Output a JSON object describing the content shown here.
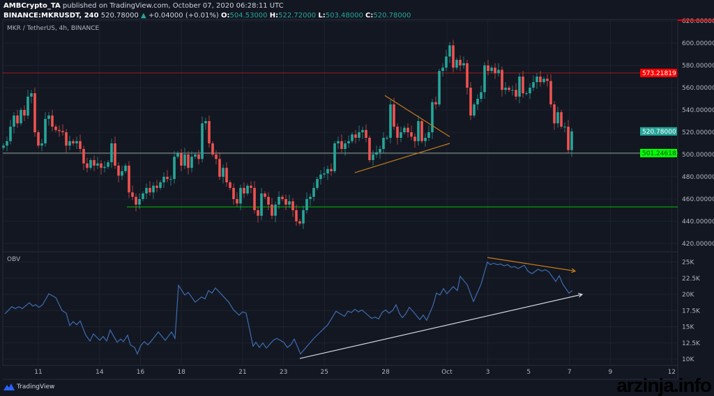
{
  "header": {
    "publisher": "AMBCrypto_TA",
    "published_text": "published on TradingView.com, October 07, 2020 06:28:11 UTC",
    "symbol": "BINANCE:MKRUSDT, 240",
    "last": "520.78000",
    "change": "+0.04000 (+0.01%)",
    "o_label": "O:",
    "o": "504.53000",
    "h_label": "H:",
    "h": "522.72000",
    "l_label": "L:",
    "l": "503.48000",
    "c_label": "C:",
    "c": "520.78000"
  },
  "pane_title": "MKR / TetherUS, 4h, BINANCE",
  "obv_title": "OBV",
  "footer": {
    "brand": "TradingView",
    "watermark": "arzinja.info"
  },
  "colors": {
    "background": "#131722",
    "up": "#26a69a",
    "down": "#ef5350",
    "obv": "#3d6eb0",
    "resistance": "#ff0000",
    "support": "#00ff00",
    "trendline": "#c77d1a"
  },
  "chart_data": [
    {
      "type": "candlestick",
      "title": "MKR / TetherUS, 4h, BINANCE",
      "interval": "4h",
      "ylim": [
        410,
        622
      ],
      "yticks": [
        420,
        440,
        460,
        480,
        500,
        520,
        540,
        560,
        580,
        600,
        620
      ],
      "ytick_labels": [
        "420.00000",
        "440.00000",
        "460.00000",
        "480.00000",
        "500.00000",
        "520.00000",
        "540.00000",
        "560.00000",
        "580.00000",
        "600.00000",
        "620.00000"
      ],
      "first_open": 506,
      "closes": [
        508,
        512,
        525,
        535,
        528,
        540,
        535,
        552,
        555,
        520,
        508,
        510,
        532,
        535,
        525,
        522,
        521,
        520,
        508,
        512,
        510,
        512,
        505,
        492,
        488,
        495,
        490,
        492,
        488,
        489,
        493,
        510,
        490,
        481,
        485,
        490,
        466,
        462,
        455,
        460,
        465,
        470,
        466,
        472,
        470,
        475,
        480,
        478,
        478,
        498,
        501,
        490,
        500,
        488,
        498,
        500,
        496,
        528,
        530,
        510,
        500,
        496,
        480,
        488,
        475,
        470,
        460,
        456,
        470,
        465,
        472,
        470,
        450,
        445,
        465,
        462,
        455,
        445,
        455,
        462,
        460,
        455,
        458,
        450,
        440,
        438,
        450,
        460,
        462,
        470,
        478,
        482,
        483,
        487,
        485,
        510,
        512,
        505,
        510,
        512,
        518,
        515,
        520,
        522,
        515,
        495,
        500,
        502,
        505,
        515,
        515,
        545,
        525,
        515,
        520,
        524,
        520,
        516,
        512,
        530,
        512,
        515,
        520,
        547,
        545,
        575,
        578,
        588,
        598,
        578,
        585,
        580,
        582,
        560,
        535,
        545,
        550,
        556,
        580,
        575,
        578,
        573,
        576,
        558,
        560,
        558,
        558,
        552,
        570,
        555,
        555,
        560,
        565,
        570,
        565,
        568,
        566,
        545,
        528,
        538,
        525,
        525,
        504,
        520.78
      ],
      "price_lines": [
        {
          "value": 573.21819,
          "label": "573.21819",
          "color": "#ff0000"
        },
        {
          "value": 520.78,
          "label": "520.78000",
          "color": "#26a69a"
        },
        {
          "value": 501.24618,
          "label": "501.24618",
          "color": "#00ff00"
        }
      ],
      "support_line": {
        "value": 453,
        "from_bar": 35.4,
        "color": "#00c000"
      },
      "trendlines": [
        {
          "from": [
            100.8,
            483.7
          ],
          "to": [
            128,
            510
          ],
          "color": "#c77d1a"
        },
        {
          "from": [
            109.4,
            553
          ],
          "to": [
            128,
            516
          ],
          "color": "#c77d1a"
        }
      ]
    },
    {
      "type": "line",
      "title": "OBV",
      "ylim": [
        9.2,
        26.5
      ],
      "yticks": [
        10,
        12.5,
        15,
        17.5,
        20,
        22.5,
        25
      ],
      "ytick_labels": [
        "10K",
        "12.5K",
        "15K",
        "17.5K",
        "20K",
        "22.5K",
        "25K"
      ],
      "points": [
        [
          0.4,
          17.0
        ],
        [
          2.4,
          18.1
        ],
        [
          3.4,
          17.8
        ],
        [
          4.4,
          18.1
        ],
        [
          5.4,
          17.8
        ],
        [
          7.4,
          18.7
        ],
        [
          8.4,
          18.2
        ],
        [
          9.2,
          18.4
        ],
        [
          10.2,
          18.0
        ],
        [
          11.2,
          18.4
        ],
        [
          13,
          20.1
        ],
        [
          15,
          19.5
        ],
        [
          16.8,
          17.5
        ],
        [
          18,
          17.1
        ],
        [
          19,
          15.2
        ],
        [
          20,
          15.8
        ],
        [
          21,
          15.3
        ],
        [
          22,
          15.9
        ],
        [
          23.6,
          13.7
        ],
        [
          24.8,
          12.8
        ],
        [
          25.8,
          13.9
        ],
        [
          27.6,
          12.9
        ],
        [
          28.6,
          13.5
        ],
        [
          29.6,
          12.8
        ],
        [
          30.6,
          14.5
        ],
        [
          32.6,
          12.6
        ],
        [
          33.6,
          13.1
        ],
        [
          34.4,
          12.7
        ],
        [
          35.6,
          13.7
        ],
        [
          36.4,
          12.2
        ],
        [
          37.6,
          11.8
        ],
        [
          38.4,
          10.8
        ],
        [
          39.4,
          12.1
        ],
        [
          40.4,
          12.7
        ],
        [
          41.4,
          12.2
        ],
        [
          42.4,
          12.8
        ],
        [
          44.4,
          14.2
        ],
        [
          46.4,
          12.9
        ],
        [
          48.2,
          14.2
        ],
        [
          49.2,
          13.2
        ],
        [
          50.2,
          21.4
        ],
        [
          52,
          19.9
        ],
        [
          53,
          20.3
        ],
        [
          55,
          18.8
        ],
        [
          56.8,
          19.6
        ],
        [
          57.8,
          19.3
        ],
        [
          58.8,
          20.6
        ],
        [
          59.8,
          20.2
        ],
        [
          60.8,
          21.0
        ],
        [
          64.6,
          18.8
        ],
        [
          66,
          17.6
        ],
        [
          67.6,
          16.8
        ],
        [
          68.6,
          17.3
        ],
        [
          69.6,
          17.1
        ],
        [
          71.6,
          12.0
        ],
        [
          72.4,
          12.6
        ],
        [
          73.4,
          11.8
        ],
        [
          74.4,
          12.5
        ],
        [
          75.4,
          11.7
        ],
        [
          77.4,
          12.9
        ],
        [
          78.4,
          13.2
        ],
        [
          80.4,
          12.6
        ],
        [
          81.4,
          11.8
        ],
        [
          82.4,
          12.2
        ],
        [
          83.4,
          13.1
        ],
        [
          85.2,
          10.8
        ],
        [
          89,
          13.2
        ],
        [
          93,
          15.3
        ],
        [
          95.4,
          17.4
        ],
        [
          97.8,
          16.6
        ],
        [
          98.8,
          17.4
        ],
        [
          99.8,
          17.2
        ],
        [
          100.8,
          17.7
        ],
        [
          101.8,
          17.3
        ],
        [
          102.8,
          17.6
        ],
        [
          105.6,
          16.3
        ],
        [
          106.6,
          16.5
        ],
        [
          107.6,
          16.2
        ],
        [
          108.6,
          17.2
        ],
        [
          109.6,
          17.6
        ],
        [
          110.6,
          17.1
        ],
        [
          111.6,
          17.5
        ],
        [
          112.6,
          18.4
        ],
        [
          113.6,
          17.0
        ],
        [
          114.4,
          16.4
        ],
        [
          115.4,
          17.0
        ],
        [
          116.4,
          18.0
        ],
        [
          117.6,
          17.3
        ],
        [
          119.4,
          16.1
        ],
        [
          120.4,
          16.8
        ],
        [
          121.4,
          16.0
        ],
        [
          123.2,
          18.3
        ],
        [
          124.2,
          20.2
        ],
        [
          125.2,
          19.9
        ],
        [
          126.2,
          20.9
        ],
        [
          127.2,
          20.1
        ],
        [
          129,
          21.2
        ],
        [
          130.2,
          20.6
        ],
        [
          131,
          22.8
        ],
        [
          133,
          21.5
        ],
        [
          134.8,
          18.9
        ],
        [
          137,
          21.6
        ],
        [
          138.8,
          25.0
        ],
        [
          139.6,
          24.6
        ],
        [
          140.6,
          24.8
        ],
        [
          141.6,
          24.6
        ],
        [
          142.6,
          24.7
        ],
        [
          143.6,
          24.4
        ],
        [
          144.6,
          24.6
        ],
        [
          145.6,
          24.2
        ],
        [
          146.6,
          24.3
        ],
        [
          147.6,
          24.0
        ],
        [
          149.4,
          24.5
        ],
        [
          150.4,
          23.6
        ],
        [
          151.6,
          23.2
        ],
        [
          153.4,
          23.9
        ],
        [
          154.4,
          23.6
        ],
        [
          155.4,
          23.8
        ],
        [
          156.4,
          23.5
        ],
        [
          158.4,
          22.0
        ],
        [
          159.4,
          22.9
        ],
        [
          160.4,
          21.6
        ],
        [
          162.2,
          20.2
        ],
        [
          163.2,
          20.6
        ]
      ],
      "trendlines": [
        {
          "from": [
            138.8,
            25.7
          ],
          "to": [
            164,
            23.6
          ],
          "color": "#c77d1a",
          "arrow": true
        },
        {
          "from": [
            85,
            10.1
          ],
          "to": [
            166,
            20.0
          ],
          "color": "#d1d4dc",
          "arrow": true
        }
      ]
    }
  ],
  "xticks": [
    {
      "label": "11",
      "date": "2020-09-11"
    },
    {
      "label": "14",
      "date": "2020-09-14"
    },
    {
      "label": "16",
      "date": "2020-09-16"
    },
    {
      "label": "18",
      "date": "2020-09-18"
    },
    {
      "label": "21",
      "date": "2020-09-21"
    },
    {
      "label": "23",
      "date": "2020-09-23"
    },
    {
      "label": "25",
      "date": "2020-09-25"
    },
    {
      "label": "28",
      "date": "2020-09-28"
    },
    {
      "label": "Oct",
      "date": "2020-10-01"
    },
    {
      "label": "3",
      "date": "2020-10-03"
    },
    {
      "label": "5",
      "date": "2020-10-05"
    },
    {
      "label": "7",
      "date": "2020-10-07"
    },
    {
      "label": "9",
      "date": "2020-10-09"
    },
    {
      "label": "12",
      "date": "2020-10-12"
    }
  ]
}
